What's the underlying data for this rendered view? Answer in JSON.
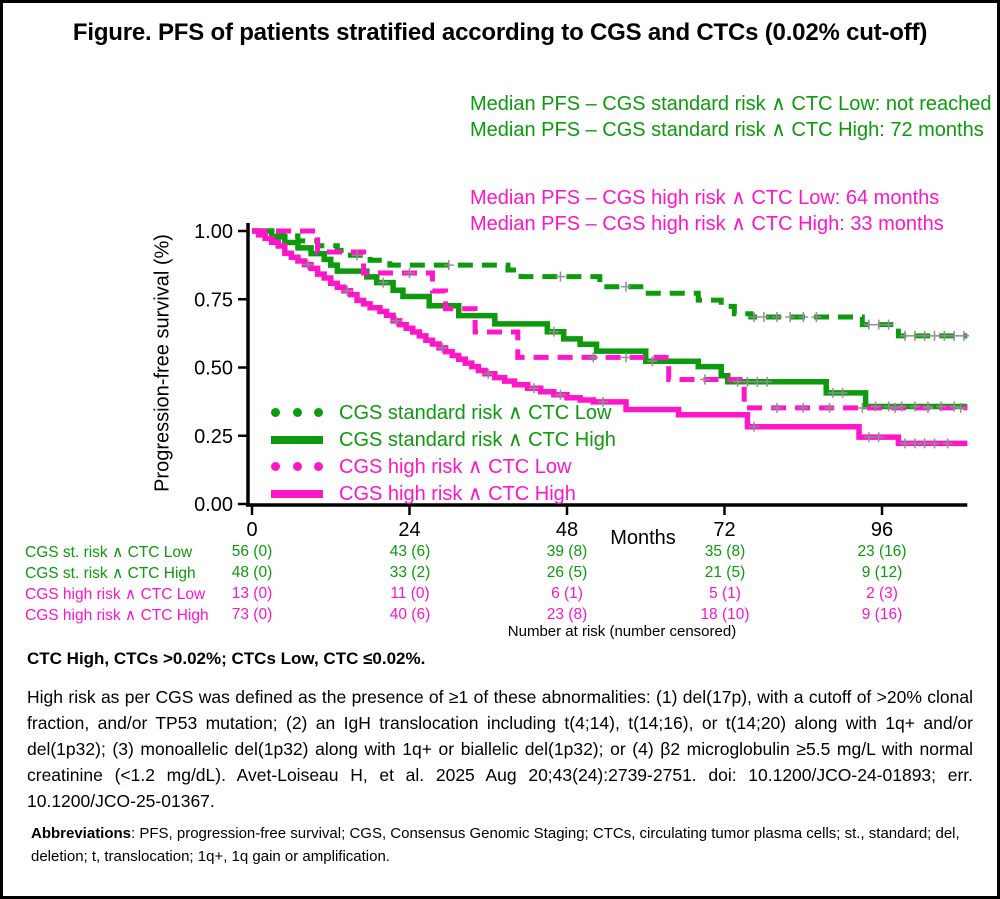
{
  "title": "Figure. PFS of patients stratified according to CGS and CTCs (0.02% cut-off)",
  "colors": {
    "green": "#0d9a0d",
    "magenta": "#ff16c9",
    "censor": "#8f8f8f",
    "axis": "#000000"
  },
  "annotations": {
    "green": [
      "Median PFS – CGS standard risk ∧ CTC Low: not reached",
      "Median PFS – CGS standard risk ∧ CTC High: 72 months"
    ],
    "magenta": [
      "Median PFS – CGS high risk ∧ CTC Low: 64 months",
      "Median PFS – CGS high risk ∧ CTC High: 33 months"
    ]
  },
  "chart_data": {
    "type": "line",
    "subtype": "kaplan-meier-step",
    "x_label": "Months",
    "y_label": "Progression-free survival (%)",
    "xlim": [
      0,
      109
    ],
    "ylim": [
      0,
      1
    ],
    "x_ticks": [
      0,
      24,
      48,
      72,
      96
    ],
    "y_ticks": [
      {
        "v": 1.0,
        "label": "1.00"
      },
      {
        "v": 0.75,
        "label": "0.75"
      },
      {
        "v": 0.5,
        "label": "0.50"
      },
      {
        "v": 0.25,
        "label": "0.25"
      },
      {
        "v": 0.0,
        "label": "0.00"
      }
    ],
    "grid": false,
    "legend_position": "inside lower-left",
    "series": [
      {
        "name": "CGS standard risk ∧ CTC Low",
        "color": "green",
        "style": "dashed",
        "median_pfs": "not reached",
        "points": [
          [
            0,
            1.0
          ],
          [
            4,
            0.982
          ],
          [
            7,
            0.964
          ],
          [
            10,
            0.946
          ],
          [
            13,
            0.929
          ],
          [
            15,
            0.911
          ],
          [
            18,
            0.893
          ],
          [
            21,
            0.875
          ],
          [
            39,
            0.857
          ],
          [
            41,
            0.833
          ],
          [
            53,
            0.796
          ],
          [
            60,
            0.772
          ],
          [
            68,
            0.747
          ],
          [
            71.5,
            0.724
          ],
          [
            73.5,
            0.697
          ],
          [
            76,
            0.685
          ],
          [
            93,
            0.657
          ],
          [
            98.5,
            0.616
          ]
        ],
        "censors": [
          [
            16,
            0.911
          ],
          [
            30,
            0.875
          ],
          [
            47,
            0.833
          ],
          [
            57,
            0.796
          ],
          [
            76.5,
            0.685
          ],
          [
            78,
            0.685
          ],
          [
            80,
            0.685
          ],
          [
            82,
            0.685
          ],
          [
            84,
            0.685
          ],
          [
            86,
            0.685
          ],
          [
            94,
            0.657
          ],
          [
            95.5,
            0.657
          ],
          [
            97,
            0.657
          ],
          [
            99.5,
            0.616
          ],
          [
            101,
            0.616
          ],
          [
            102.5,
            0.616
          ],
          [
            104,
            0.616
          ],
          [
            105.5,
            0.616
          ],
          [
            107,
            0.616
          ],
          [
            108.5,
            0.616
          ]
        ]
      },
      {
        "name": "CGS standard risk ∧ CTC High",
        "color": "green",
        "style": "solid",
        "median_pfs": "72 months",
        "points": [
          [
            0,
            1.0
          ],
          [
            3,
            0.979
          ],
          [
            5,
            0.958
          ],
          [
            7,
            0.938
          ],
          [
            9,
            0.917
          ],
          [
            11,
            0.896
          ],
          [
            12,
            0.875
          ],
          [
            13,
            0.853
          ],
          [
            17.5,
            0.832
          ],
          [
            19,
            0.811
          ],
          [
            21.5,
            0.783
          ],
          [
            23,
            0.76
          ],
          [
            27,
            0.726
          ],
          [
            31.5,
            0.69
          ],
          [
            37,
            0.66
          ],
          [
            45,
            0.631
          ],
          [
            47.5,
            0.605
          ],
          [
            50,
            0.585
          ],
          [
            52.5,
            0.56
          ],
          [
            60,
            0.523
          ],
          [
            68,
            0.503
          ],
          [
            71.5,
            0.47
          ],
          [
            72.5,
            0.448
          ],
          [
            87.5,
            0.407
          ],
          [
            93.5,
            0.357
          ]
        ],
        "censors": [
          [
            20,
            0.811
          ],
          [
            46,
            0.631
          ],
          [
            61,
            0.523
          ],
          [
            74,
            0.448
          ],
          [
            75.5,
            0.448
          ],
          [
            77,
            0.448
          ],
          [
            78.5,
            0.448
          ],
          [
            88.5,
            0.407
          ],
          [
            90,
            0.407
          ],
          [
            95,
            0.357
          ],
          [
            97,
            0.357
          ],
          [
            99,
            0.357
          ],
          [
            101,
            0.357
          ],
          [
            103,
            0.357
          ],
          [
            105,
            0.357
          ],
          [
            107,
            0.357
          ]
        ]
      },
      {
        "name": "CGS high risk ∧ CTC Low",
        "color": "magenta",
        "style": "dashed",
        "median_pfs": "64 months",
        "points": [
          [
            0,
            1.0
          ],
          [
            10,
            0.923
          ],
          [
            17,
            0.846
          ],
          [
            27.5,
            0.78
          ],
          [
            29.5,
            0.715
          ],
          [
            34,
            0.63
          ],
          [
            40.5,
            0.537
          ],
          [
            63.5,
            0.456
          ],
          [
            75,
            0.352
          ]
        ],
        "censors": [
          [
            24,
            0.846
          ],
          [
            52,
            0.537
          ],
          [
            57,
            0.537
          ],
          [
            69,
            0.456
          ],
          [
            80,
            0.352
          ],
          [
            84,
            0.352
          ],
          [
            88,
            0.352
          ],
          [
            93,
            0.352
          ],
          [
            98,
            0.352
          ],
          [
            103,
            0.352
          ],
          [
            108,
            0.352
          ]
        ]
      },
      {
        "name": "CGS high risk ∧ CTC High",
        "color": "magenta",
        "style": "solid",
        "median_pfs": "33 months",
        "points": [
          [
            0,
            1.0
          ],
          [
            1,
            0.986
          ],
          [
            2,
            0.973
          ],
          [
            3,
            0.959
          ],
          [
            4,
            0.945
          ],
          [
            5,
            0.918
          ],
          [
            6,
            0.904
          ],
          [
            7,
            0.89
          ],
          [
            8,
            0.877
          ],
          [
            9,
            0.863
          ],
          [
            10,
            0.842
          ],
          [
            11,
            0.828
          ],
          [
            12,
            0.808
          ],
          [
            13,
            0.794
          ],
          [
            14,
            0.781
          ],
          [
            15,
            0.767
          ],
          [
            16,
            0.746
          ],
          [
            17,
            0.733
          ],
          [
            18,
            0.719
          ],
          [
            19.5,
            0.705
          ],
          [
            20.5,
            0.691
          ],
          [
            21.5,
            0.671
          ],
          [
            22.5,
            0.657
          ],
          [
            23.5,
            0.644
          ],
          [
            24.5,
            0.63
          ],
          [
            25.5,
            0.616
          ],
          [
            26.5,
            0.6
          ],
          [
            27.5,
            0.586
          ],
          [
            28.5,
            0.572
          ],
          [
            29.5,
            0.558
          ],
          [
            30.5,
            0.544
          ],
          [
            31.5,
            0.53
          ],
          [
            32.5,
            0.516
          ],
          [
            33.5,
            0.503
          ],
          [
            34.5,
            0.489
          ],
          [
            35.5,
            0.477
          ],
          [
            37,
            0.463
          ],
          [
            38.5,
            0.45
          ],
          [
            40,
            0.437
          ],
          [
            42,
            0.424
          ],
          [
            44,
            0.411
          ],
          [
            46,
            0.4
          ],
          [
            48,
            0.389
          ],
          [
            50,
            0.381
          ],
          [
            52,
            0.374
          ],
          [
            57,
            0.346
          ],
          [
            65,
            0.327
          ],
          [
            75.5,
            0.283
          ],
          [
            92.5,
            0.245
          ],
          [
            98.5,
            0.222
          ]
        ],
        "censors": [
          [
            8.5,
            0.877
          ],
          [
            14.5,
            0.781
          ],
          [
            22,
            0.671
          ],
          [
            29,
            0.572
          ],
          [
            36,
            0.477
          ],
          [
            43,
            0.424
          ],
          [
            47,
            0.4
          ],
          [
            53.5,
            0.374
          ],
          [
            76.5,
            0.283
          ],
          [
            94,
            0.245
          ],
          [
            95.5,
            0.245
          ],
          [
            99.5,
            0.222
          ],
          [
            101,
            0.222
          ],
          [
            102.5,
            0.222
          ],
          [
            104,
            0.222
          ],
          [
            106,
            0.222
          ]
        ]
      }
    ],
    "risk_table": {
      "caption": "Number at risk (number censored)",
      "columns": [
        0,
        24,
        48,
        72,
        96
      ],
      "rows": [
        {
          "label": "CGS st. risk ∧ CTC Low",
          "color": "green",
          "values": [
            "56 (0)",
            "43 (6)",
            "39 (8)",
            "35 (8)",
            "23 (16)"
          ]
        },
        {
          "label": "CGS st. risk ∧ CTC High",
          "color": "green",
          "values": [
            "48 (0)",
            "33 (2)",
            "26 (5)",
            "21 (5)",
            "9 (12)"
          ]
        },
        {
          "label": "CGS high risk ∧ CTC Low",
          "color": "magenta",
          "values": [
            "13 (0)",
            "11 (0)",
            "6 (1)",
            "5 (1)",
            "2 (3)"
          ]
        },
        {
          "label": "CGS high risk ∧ CTC High",
          "color": "magenta",
          "values": [
            "73 (0)",
            "40 (6)",
            "23 (8)",
            "18 (10)",
            "9 (16)"
          ]
        }
      ]
    }
  },
  "footnotes": {
    "bold_line": "CTC High, CTCs >0.02%; CTCs Low, CTC ≤0.02%.",
    "paragraph": "High risk as per CGS was defined as the presence of ≥1 of these abnormalities: (1) del(17p), with a cutoff of >20% clonal fraction, and/or TP53 mutation; (2) an IgH translocation including t(4;14), t(14;16), or t(14;20) along with 1q+ and/or del(1p32); (3) monoallelic del(1p32) along with 1q+ or biallelic del(1p32); or (4) β2 microglobulin ≥5.5 mg/L with normal creatinine (<1.2 mg/dL). Avet-Loiseau H, et al. 2025 Aug 20;43(24):2739-2751. doi: 10.1200/JCO-24-01893; err. 10.1200/JCO-25-01367.",
    "abbreviations_label": "Abbreviations",
    "abbreviations_text": ": PFS, progression-free survival; CGS, Consensus Genomic Staging; CTCs, circulating tumor plasma cells; st., standard; del, deletion; t, translocation; 1q+, 1q gain or amplification."
  }
}
